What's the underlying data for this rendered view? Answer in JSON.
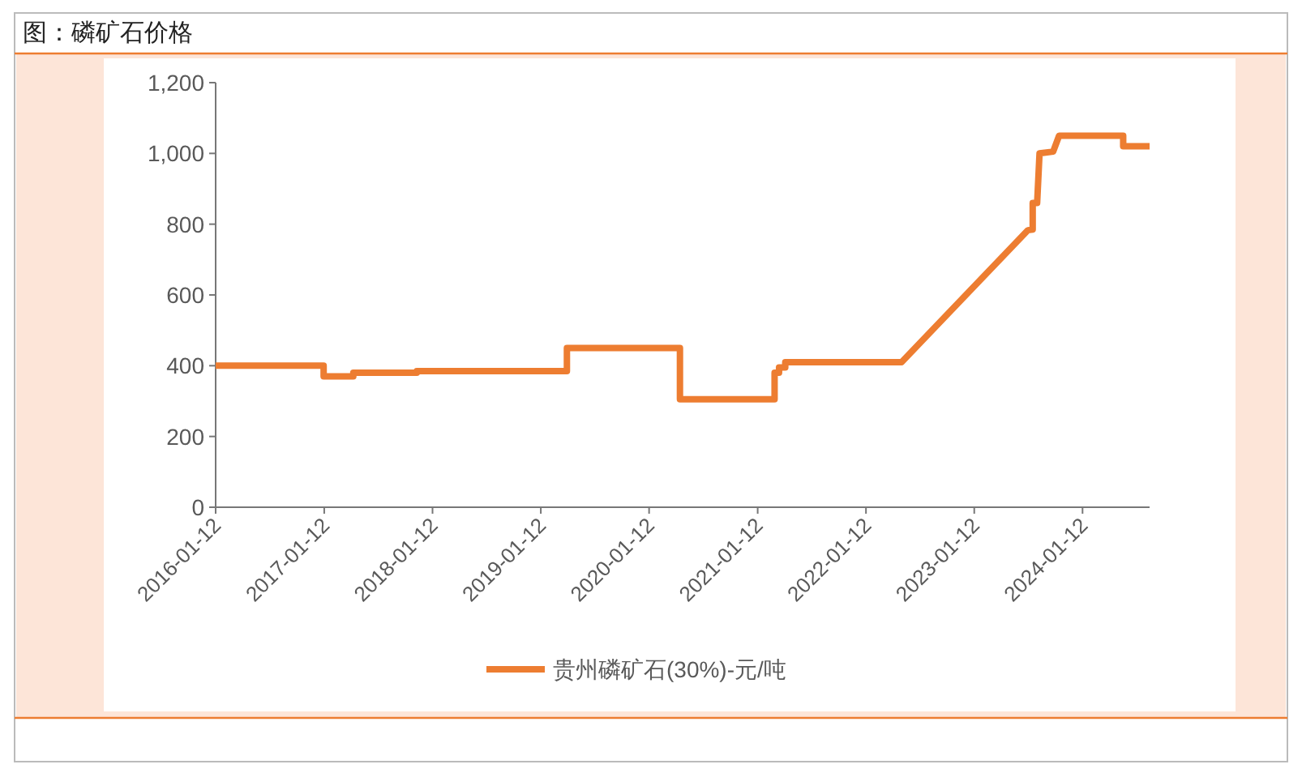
{
  "chart_data": {
    "type": "line",
    "title": "图：磷矿石价格",
    "x": [
      "2016-01-12",
      "2017-01-10",
      "2017-01-10",
      "2017-04-20",
      "2017-04-20",
      "2017-11-20",
      "2017-11-20",
      "2019-04-10",
      "2019-04-10",
      "2020-04-25",
      "2020-04-25",
      "2021-03-10",
      "2021-03-10",
      "2021-03-25",
      "2021-03-25",
      "2021-04-15",
      "2021-04-15",
      "2022-05-12",
      "2023-07-12",
      "2023-07-28",
      "2023-07-28",
      "2023-08-12",
      "2023-08-20",
      "2023-10-05",
      "2023-10-05",
      "2023-10-25",
      "2023-10-25",
      "2024-05-28",
      "2024-05-28",
      "2024-08-25"
    ],
    "series": [
      {
        "name": "贵州磷矿石(30%)-元/吨",
        "color": "#ed7d31",
        "values": [
          400,
          400,
          370,
          370,
          380,
          380,
          385,
          385,
          450,
          450,
          305,
          305,
          380,
          380,
          395,
          395,
          410,
          410,
          783,
          785,
          860,
          860,
          1000,
          1005,
          1005,
          1050,
          1050,
          1050,
          1020,
          1020
        ]
      }
    ],
    "xlim": [
      "2016-01-12",
      "2024-08-25"
    ],
    "xticks": [
      "2016-01-12",
      "2017-01-12",
      "2018-01-12",
      "2019-01-12",
      "2020-01-12",
      "2021-01-12",
      "2022-01-12",
      "2023-01-12",
      "2024-01-12"
    ],
    "ylim": [
      0,
      1200
    ],
    "yticks": [
      {
        "value": 0,
        "label": "0"
      },
      {
        "value": 200,
        "label": "200"
      },
      {
        "value": 400,
        "label": "400"
      },
      {
        "value": 600,
        "label": "600"
      },
      {
        "value": 800,
        "label": "800"
      },
      {
        "value": 1000,
        "label": "1,000"
      },
      {
        "value": 1200,
        "label": "1,200"
      }
    ],
    "grid": false,
    "legend": "bottom"
  }
}
